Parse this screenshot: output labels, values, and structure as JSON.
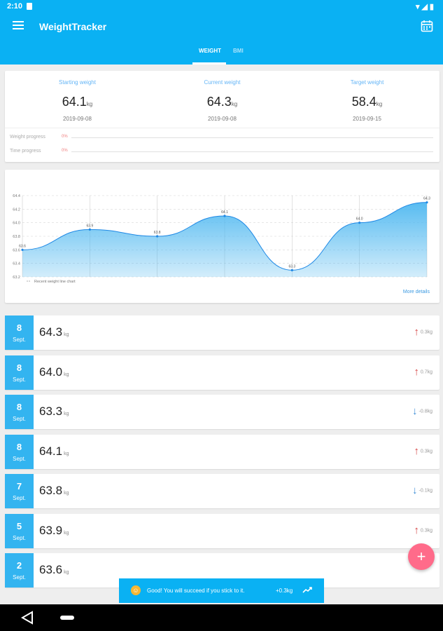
{
  "status_bar": {
    "time": "2:10"
  },
  "app": {
    "title": "WeightTracker"
  },
  "tabs": [
    {
      "label": "WEIGHT",
      "active": true
    },
    {
      "label": "BMI",
      "active": false
    }
  ],
  "summary": {
    "starting": {
      "label": "Starting weight",
      "value": "64.1",
      "unit": "kg",
      "date": "2019-09-08"
    },
    "current": {
      "label": "Current weight",
      "value": "64.3",
      "unit": "kg",
      "date": "2019-09-08"
    },
    "target": {
      "label": "Target weight",
      "value": "58.4",
      "unit": "kg",
      "date": "2019-09-15"
    },
    "weight_progress": {
      "label": "Weight progress",
      "value": "0%"
    },
    "time_progress": {
      "label": "Time progress",
      "value": "0%"
    }
  },
  "chart_data": {
    "type": "area",
    "legend": "Recent weight line chart",
    "y_ticks": [
      "64.4",
      "64.2",
      "64.0",
      "63.8",
      "63.6",
      "63.4",
      "63.2"
    ],
    "ylim": [
      63.2,
      64.4
    ],
    "values": [
      63.6,
      63.9,
      63.8,
      64.1,
      63.3,
      64.0,
      64.3
    ],
    "point_labels": [
      "63.6",
      "63.9",
      "63.8",
      "64.1",
      "63.3",
      "64.0",
      "64.3"
    ],
    "grid": true,
    "fill_color": "#4fb8f0"
  },
  "more_details": "More details",
  "records": [
    {
      "day": "8",
      "month": "Sept.",
      "value": "64.3",
      "unit": "kg",
      "direction": "up",
      "delta": "0.3kg"
    },
    {
      "day": "8",
      "month": "Sept.",
      "value": "64.0",
      "unit": "kg",
      "direction": "up",
      "delta": "0.7kg"
    },
    {
      "day": "8",
      "month": "Sept.",
      "value": "63.3",
      "unit": "kg",
      "direction": "down",
      "delta": "-0.8kg"
    },
    {
      "day": "8",
      "month": "Sept.",
      "value": "64.1",
      "unit": "kg",
      "direction": "up",
      "delta": "0.3kg"
    },
    {
      "day": "7",
      "month": "Sept.",
      "value": "63.8",
      "unit": "kg",
      "direction": "down",
      "delta": "-0.1kg"
    },
    {
      "day": "5",
      "month": "Sept.",
      "value": "63.9",
      "unit": "kg",
      "direction": "up",
      "delta": "0.3kg"
    },
    {
      "day": "2",
      "month": "Sept.",
      "value": "63.6",
      "unit": "kg",
      "direction": "",
      "delta": ""
    }
  ],
  "fab": {
    "label": "+"
  },
  "snackbar": {
    "message": "Good! You will succeed if you stick to it.",
    "delta": "+0.3kg"
  },
  "colors": {
    "primary": "#0ab1f3",
    "badge": "#33b4f0",
    "fab": "#ff6b8a",
    "up": "#d64545",
    "down": "#3d8ed6"
  },
  "icons": {
    "menu": "hamburger-menu-icon",
    "calendar": "calendar-icon",
    "snackbar": "smiley-icon",
    "trend": "trending-up-icon"
  }
}
